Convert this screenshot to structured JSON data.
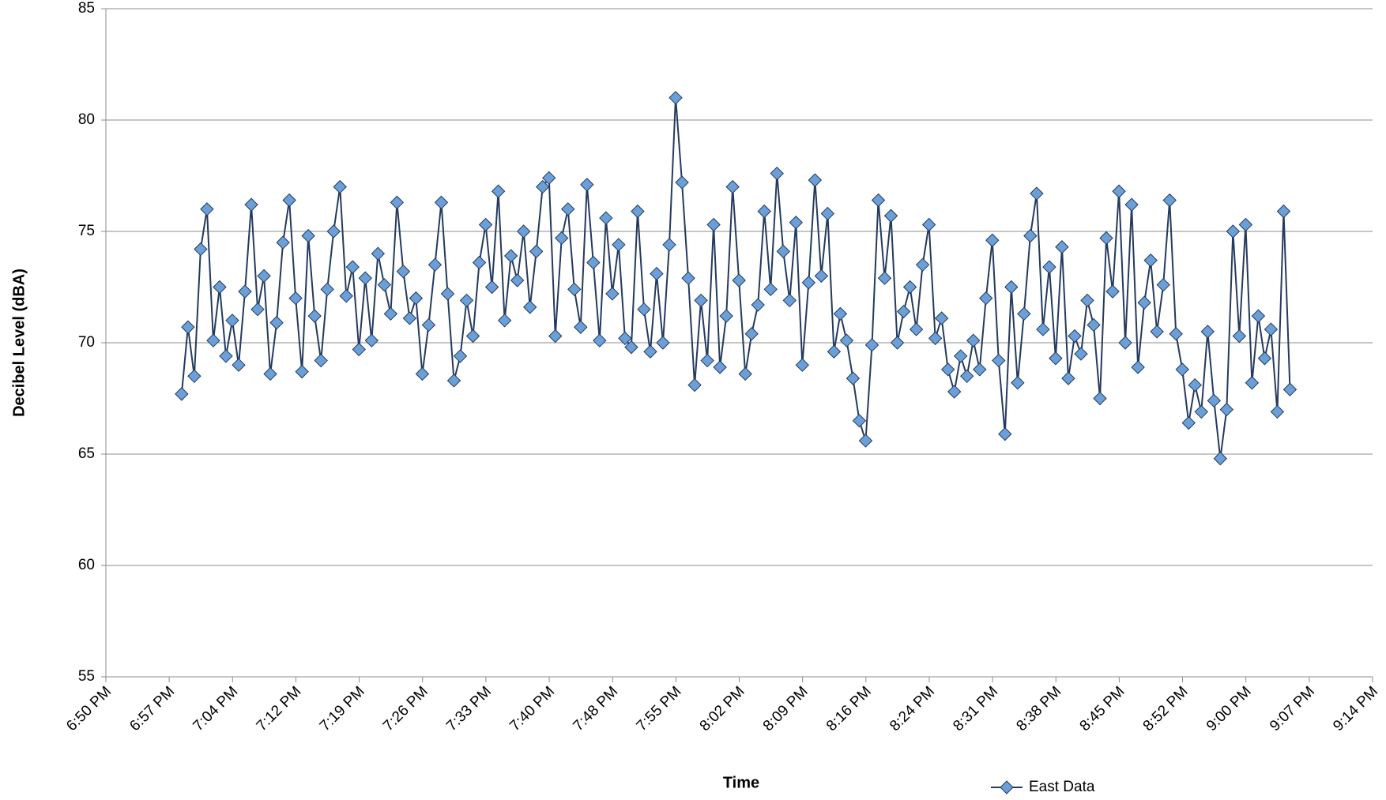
{
  "chart_data": {
    "type": "line",
    "y_label": "Decibel Level (dBA)",
    "x_label": "Time",
    "ylim": [
      55,
      85
    ],
    "yticks": [
      55,
      60,
      65,
      70,
      75,
      80,
      85
    ],
    "grid": true,
    "xlim": [
      0.78472,
      0.88472
    ],
    "xticks": [
      {
        "value": 0.78472,
        "label": "6:50 PM"
      },
      {
        "value": 0.78972,
        "label": "6:57 PM"
      },
      {
        "value": 0.79472,
        "label": "7:04 PM"
      },
      {
        "value": 0.79972,
        "label": "7:12 PM"
      },
      {
        "value": 0.80472,
        "label": "7:19 PM"
      },
      {
        "value": 0.80972,
        "label": "7:26 PM"
      },
      {
        "value": 0.81472,
        "label": "7:33 PM"
      },
      {
        "value": 0.81972,
        "label": "7:40 PM"
      },
      {
        "value": 0.82472,
        "label": "7:48 PM"
      },
      {
        "value": 0.82972,
        "label": "7:55 PM"
      },
      {
        "value": 0.83472,
        "label": "8:02 PM"
      },
      {
        "value": 0.83972,
        "label": "8:09 PM"
      },
      {
        "value": 0.84472,
        "label": "8:16 PM"
      },
      {
        "value": 0.84972,
        "label": "8:24 PM"
      },
      {
        "value": 0.85472,
        "label": "8:31 PM"
      },
      {
        "value": 0.85972,
        "label": "8:38 PM"
      },
      {
        "value": 0.86472,
        "label": "8:45 PM"
      },
      {
        "value": 0.86972,
        "label": "8:52 PM"
      },
      {
        "value": 0.87472,
        "label": "9:00 PM"
      },
      {
        "value": 0.87972,
        "label": "9:07 PM"
      },
      {
        "value": 0.88472,
        "label": "9:14 PM"
      }
    ],
    "legend": "bottom-right",
    "x": [
      0.7907,
      0.7912,
      0.7917,
      0.7922,
      0.7927,
      0.7932,
      0.7937,
      0.7942,
      0.7947,
      0.7952,
      0.7957,
      0.7962,
      0.7967,
      0.7972,
      0.7977,
      0.7982,
      0.7987,
      0.7992,
      0.7997,
      0.8002,
      0.8007,
      0.8012,
      0.8017,
      0.8022,
      0.8027,
      0.8032,
      0.8037,
      0.8042,
      0.8047,
      0.8052,
      0.8057,
      0.8062,
      0.8067,
      0.8072,
      0.8077,
      0.8082,
      0.8087,
      0.8092,
      0.8097,
      0.8102,
      0.8107,
      0.8112,
      0.8117,
      0.8122,
      0.8127,
      0.8132,
      0.8137,
      0.8142,
      0.8147,
      0.8152,
      0.8157,
      0.8162,
      0.8167,
      0.8172,
      0.8177,
      0.8182,
      0.8187,
      0.8192,
      0.8197,
      0.8202,
      0.8207,
      0.8212,
      0.8217,
      0.8222,
      0.8227,
      0.8232,
      0.8237,
      0.8242,
      0.8247,
      0.8252,
      0.8257,
      0.8262,
      0.8267,
      0.8272,
      0.8277,
      0.8282,
      0.8287,
      0.8292,
      0.8297,
      0.8302,
      0.8307,
      0.8312,
      0.8317,
      0.8322,
      0.8327,
      0.8332,
      0.8337,
      0.8342,
      0.8347,
      0.8352,
      0.8357,
      0.8362,
      0.8367,
      0.8372,
      0.8377,
      0.8382,
      0.8387,
      0.8392,
      0.8397,
      0.8402,
      0.8407,
      0.8412,
      0.8417,
      0.8422,
      0.8427,
      0.8432,
      0.8437,
      0.8442,
      0.8447,
      0.8452,
      0.8457,
      0.8462,
      0.8467,
      0.8472,
      0.8477,
      0.8482,
      0.8487,
      0.8492,
      0.8497,
      0.8502,
      0.8507,
      0.8512,
      0.8517,
      0.8522,
      0.8527,
      0.8532,
      0.8537,
      0.8542,
      0.8547,
      0.8552,
      0.8557,
      0.8562,
      0.8567,
      0.8572,
      0.8577,
      0.8582,
      0.8587,
      0.8592,
      0.8597,
      0.8602,
      0.8607,
      0.8612,
      0.8617,
      0.8622,
      0.8627,
      0.8632,
      0.8637,
      0.8642,
      0.8647,
      0.8652,
      0.8657,
      0.8662,
      0.8667,
      0.8672,
      0.8677,
      0.8682,
      0.8687,
      0.8692,
      0.8697,
      0.8702,
      0.8707,
      0.8712,
      0.8717,
      0.8722,
      0.8727,
      0.8732,
      0.8737,
      0.8742,
      0.8747,
      0.8752,
      0.8757,
      0.8762,
      0.8767,
      0.8772,
      0.8777,
      0.8782
    ],
    "series": [
      {
        "name": "East Data",
        "color": "#6a9fd8",
        "line_color": "#243a5e",
        "values": [
          67.7,
          70.7,
          68.5,
          74.2,
          76.0,
          70.1,
          72.5,
          69.4,
          71.0,
          69.0,
          72.3,
          76.2,
          71.5,
          73.0,
          68.6,
          70.9,
          74.5,
          76.4,
          72.0,
          68.7,
          74.8,
          71.2,
          69.2,
          72.4,
          75.0,
          77.0,
          72.1,
          73.4,
          69.7,
          72.9,
          70.1,
          74.0,
          72.6,
          71.3,
          76.3,
          73.2,
          71.1,
          72.0,
          68.6,
          70.8,
          73.5,
          76.3,
          72.2,
          68.3,
          69.4,
          71.9,
          70.3,
          73.6,
          75.3,
          72.5,
          76.8,
          71.0,
          73.9,
          72.8,
          75.0,
          71.6,
          74.1,
          77.0,
          77.4,
          70.3,
          74.7,
          76.0,
          72.4,
          70.7,
          77.1,
          73.6,
          70.1,
          75.6,
          72.2,
          74.4,
          70.2,
          69.8,
          75.9,
          71.5,
          69.6,
          73.1,
          70.0,
          74.4,
          81.0,
          77.2,
          72.9,
          68.1,
          71.9,
          69.2,
          75.3,
          68.9,
          71.2,
          77.0,
          72.8,
          68.6,
          70.4,
          71.7,
          75.9,
          72.4,
          77.6,
          74.1,
          71.9,
          75.4,
          69.0,
          72.7,
          77.3,
          73.0,
          75.8,
          69.6,
          71.3,
          70.1,
          68.4,
          66.5,
          65.6,
          69.9,
          76.4,
          72.9,
          75.7,
          70.0,
          71.4,
          72.5,
          70.6,
          73.5,
          75.3,
          70.2,
          71.1,
          68.8,
          67.8,
          69.4,
          68.5,
          70.1,
          68.8,
          72.0,
          74.6,
          69.2,
          65.9,
          72.5,
          68.2,
          71.3,
          74.8,
          76.7,
          70.6,
          73.4,
          69.3,
          74.3,
          68.4,
          70.3,
          69.5,
          71.9,
          70.8,
          67.5,
          74.7,
          72.3,
          76.8,
          70.0,
          76.2,
          68.9,
          71.8,
          73.7,
          70.5,
          72.6,
          76.4,
          70.4,
          68.8,
          66.4,
          68.1,
          66.9,
          70.5,
          67.4,
          64.8,
          67.0,
          75.0,
          70.3,
          75.3,
          68.2,
          71.2,
          69.3,
          70.6,
          66.9,
          75.9,
          67.9
        ]
      }
    ]
  }
}
